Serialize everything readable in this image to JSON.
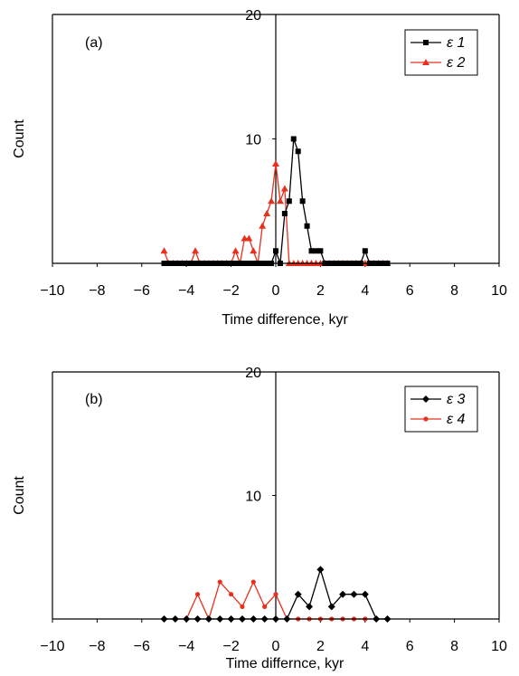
{
  "chart_data": [
    {
      "type": "line",
      "panel_label": "(a)",
      "xlabel": "Time difference, kyr",
      "ylabel": "Count",
      "xlim": [
        -10,
        10
      ],
      "ylim": [
        0,
        20
      ],
      "xticks": [
        "−10",
        "−8",
        "−6",
        "−4",
        "−2",
        "0",
        "2",
        "4",
        "6",
        "8",
        "10"
      ],
      "yticks": [
        "10",
        "20"
      ],
      "grid": false,
      "legend": "top-right",
      "series": [
        {
          "name": "ε 1",
          "color": "#000000",
          "marker": "square",
          "x": [
            -5.0,
            -4.8,
            -4.6,
            -4.4,
            -4.2,
            -4.0,
            -3.8,
            -3.6,
            -3.4,
            -3.2,
            -3.0,
            -2.8,
            -2.6,
            -2.4,
            -2.2,
            -2.0,
            -1.8,
            -1.6,
            -1.4,
            -1.2,
            -1.0,
            -0.8,
            -0.6,
            -0.4,
            -0.2,
            0.0,
            0.2,
            0.4,
            0.6,
            0.8,
            1.0,
            1.2,
            1.4,
            1.6,
            1.8,
            2.0,
            2.2,
            2.4,
            2.6,
            2.8,
            3.0,
            3.2,
            3.4,
            3.6,
            3.8,
            4.0,
            4.2,
            4.4,
            4.6,
            4.8,
            5.0
          ],
          "y": [
            0,
            0,
            0,
            0,
            0,
            0,
            0,
            0,
            0,
            0,
            0,
            0,
            0,
            0,
            0,
            0,
            0,
            0,
            0,
            0,
            0,
            0,
            0,
            0,
            0,
            1,
            0,
            4,
            5,
            10,
            9,
            5,
            3,
            1,
            1,
            1,
            0,
            0,
            0,
            0,
            0,
            0,
            0,
            0,
            0,
            1,
            0,
            0,
            0,
            0,
            0
          ]
        },
        {
          "name": "ε 2",
          "color": "#e8301e",
          "marker": "triangle",
          "x": [
            -5.0,
            -4.8,
            -4.6,
            -4.4,
            -4.2,
            -4.0,
            -3.8,
            -3.6,
            -3.4,
            -3.2,
            -3.0,
            -2.8,
            -2.6,
            -2.4,
            -2.2,
            -2.0,
            -1.8,
            -1.6,
            -1.4,
            -1.2,
            -1.0,
            -0.8,
            -0.6,
            -0.4,
            -0.2,
            0.0,
            0.2,
            0.4,
            0.6,
            0.8,
            1.0,
            1.2,
            1.4,
            1.6,
            1.8,
            2.0,
            2.2,
            2.4,
            2.6,
            2.8,
            3.0,
            3.2,
            3.4,
            3.6,
            3.8,
            4.0,
            4.2,
            4.4,
            4.6,
            4.8,
            5.0
          ],
          "y": [
            1,
            0,
            0,
            0,
            0,
            0,
            0,
            1,
            0,
            0,
            0,
            0,
            0,
            0,
            0,
            0,
            1,
            0,
            2,
            2,
            1,
            0,
            3,
            4,
            5,
            8,
            5,
            6,
            0,
            0,
            0,
            0,
            0,
            0,
            0,
            0,
            0,
            0,
            0,
            0,
            0,
            0,
            0,
            0,
            0,
            0,
            0,
            0,
            0,
            0,
            0
          ]
        }
      ]
    },
    {
      "type": "line",
      "panel_label": "(b)",
      "xlabel": "Time differnce, kyr",
      "ylabel": "Count",
      "xlim": [
        -10,
        10
      ],
      "ylim": [
        0,
        20
      ],
      "xticks": [
        "−10",
        "−8",
        "−6",
        "−4",
        "−2",
        "0",
        "2",
        "4",
        "6",
        "8",
        "10"
      ],
      "yticks": [
        "10",
        "20"
      ],
      "grid": false,
      "legend": "top-right",
      "series": [
        {
          "name": "ε 3",
          "color": "#000000",
          "marker": "diamond",
          "x": [
            -5.0,
            -4.5,
            -4.0,
            -3.5,
            -3.0,
            -2.5,
            -2.0,
            -1.5,
            -1.0,
            -0.5,
            0.0,
            0.5,
            1.0,
            1.5,
            2.0,
            2.5,
            3.0,
            3.5,
            4.0,
            4.5,
            5.0
          ],
          "y": [
            0,
            0,
            0,
            0,
            0,
            0,
            0,
            0,
            0,
            0,
            0,
            0,
            2,
            1,
            4,
            1,
            2,
            2,
            2,
            0,
            0
          ]
        },
        {
          "name": "ε 4",
          "color": "#e8301e",
          "marker": "circle",
          "x": [
            -5.0,
            -4.5,
            -4.0,
            -3.5,
            -3.0,
            -2.5,
            -2.0,
            -1.5,
            -1.0,
            -0.5,
            0.0,
            0.5,
            1.0,
            1.5,
            2.0,
            2.5,
            3.0,
            3.5,
            4.0,
            4.5,
            5.0
          ],
          "y": [
            0,
            0,
            0,
            2,
            0,
            3,
            2,
            1,
            3,
            1,
            2,
            0,
            0,
            0,
            0,
            0,
            0,
            0,
            0,
            0,
            0
          ]
        }
      ]
    }
  ]
}
